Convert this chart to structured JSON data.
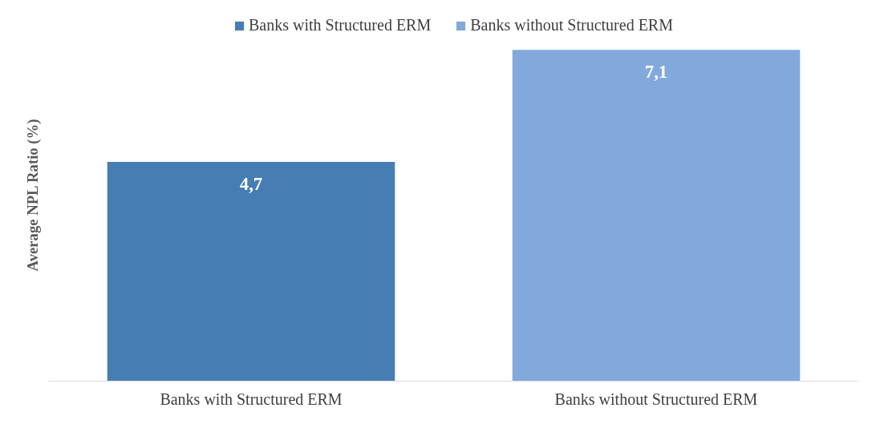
{
  "chart_data": {
    "type": "bar",
    "ylabel": "Average NPL Ratio (%)",
    "categories": [
      "Banks with Structured ERM",
      "Banks without Structured ERM"
    ],
    "series": [
      {
        "name": "Banks with Structured ERM",
        "color": "#467eb4",
        "values": [
          4.7,
          null
        ],
        "value_labels": [
          "4,7",
          null
        ]
      },
      {
        "name": "Banks without Structured ERM",
        "color": "#82a9db",
        "values": [
          null,
          7.1
        ],
        "value_labels": [
          null,
          "7,1"
        ]
      }
    ],
    "legend": "top"
  }
}
